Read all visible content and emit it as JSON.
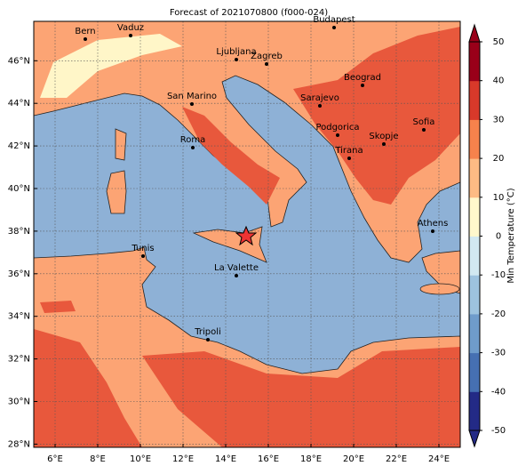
{
  "header": {
    "title": "Forecast of 2021070800 (f000-024)"
  },
  "map": {
    "xlim": [
      5,
      25
    ],
    "ylim": [
      27.85,
      47.85
    ],
    "grid": true,
    "xticks": [
      {
        "value": 6,
        "label": "6°E"
      },
      {
        "value": 8,
        "label": "8°E"
      },
      {
        "value": 10,
        "label": "10°E"
      },
      {
        "value": 12,
        "label": "12°E"
      },
      {
        "value": 14,
        "label": "14°E"
      },
      {
        "value": 16,
        "label": "16°E"
      },
      {
        "value": 18,
        "label": "18°E"
      },
      {
        "value": 20,
        "label": "20°E"
      },
      {
        "value": 22,
        "label": "22°E"
      },
      {
        "value": 24,
        "label": "24°E"
      }
    ],
    "yticks": [
      {
        "value": 28,
        "label": "28°N"
      },
      {
        "value": 30,
        "label": "30°N"
      },
      {
        "value": 32,
        "label": "32°N"
      },
      {
        "value": 34,
        "label": "34°N"
      },
      {
        "value": 36,
        "label": "36°N"
      },
      {
        "value": 38,
        "label": "38°N"
      },
      {
        "value": 40,
        "label": "40°N"
      },
      {
        "value": 42,
        "label": "42°N"
      },
      {
        "value": 44,
        "label": "44°N"
      },
      {
        "value": 46,
        "label": "46°N"
      }
    ],
    "cities": [
      "Bern",
      "Vaduz",
      "Budapest",
      "Ljubljana",
      "Zagreb",
      "Beograd",
      "San Marino",
      "Sarajevo",
      "Roma",
      "Podgorica",
      "Skopje",
      "Sofia",
      "Tirana",
      "Athens",
      "Tunis",
      "La Valette",
      "Tripoli"
    ]
  },
  "colorbar": {
    "label": "Min Temperature (°C)",
    "lim": [
      -50,
      50
    ],
    "ticks": [
      -50,
      -40,
      -30,
      -20,
      -10,
      0,
      10,
      20,
      30,
      40,
      50
    ],
    "colors": [
      "#232a86",
      "#4670b2",
      "#6f9ccb",
      "#9dc3df",
      "#d2e9f1",
      "#fff8cc",
      "#fdbb84",
      "#f6824c",
      "#d8392a",
      "#990019"
    ]
  }
}
